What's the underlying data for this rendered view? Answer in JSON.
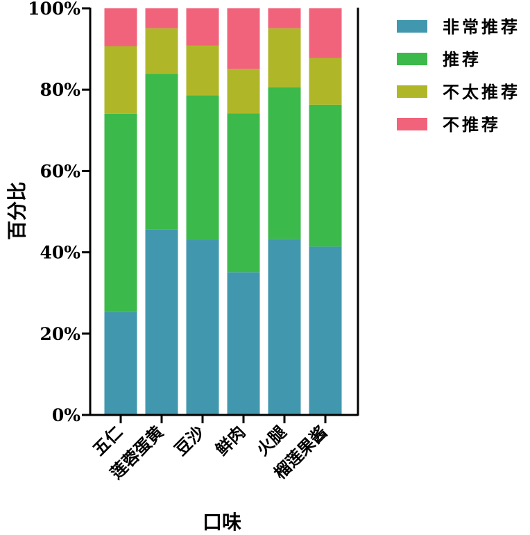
{
  "chart_data": {
    "type": "bar",
    "stacked": true,
    "categories": [
      "五仁",
      "莲蓉蛋黄",
      "豆沙",
      "鲜肉",
      "火腿",
      "榴莲果酱"
    ],
    "series": [
      {
        "name": "非常推荐",
        "color": "#4197ae",
        "values": [
          25.3,
          45.6,
          43.0,
          35.1,
          43.3,
          41.4
        ]
      },
      {
        "name": "推荐",
        "color": "#3cb94b",
        "values": [
          48.8,
          38.3,
          35.6,
          39.1,
          37.3,
          34.9
        ]
      },
      {
        "name": "不太推荐",
        "color": "#afb729",
        "values": [
          16.6,
          11.2,
          12.2,
          10.9,
          14.5,
          11.5
        ]
      },
      {
        "name": "不推荐",
        "color": "#f1637b",
        "values": [
          9.3,
          4.9,
          9.2,
          14.9,
          4.9,
          12.2
        ]
      }
    ],
    "ylabel": "百分比",
    "xlabel": "口味",
    "ylim": [
      0,
      100
    ],
    "yticks": [
      "0%",
      "20%",
      "40%",
      "60%",
      "80%",
      "100%"
    ],
    "grid": false,
    "legend": "right"
  }
}
